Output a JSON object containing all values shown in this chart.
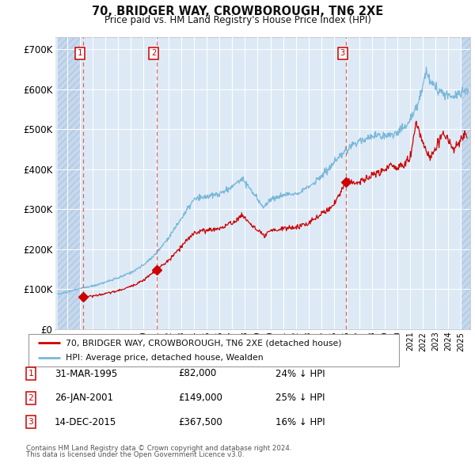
{
  "title": "70, BRIDGER WAY, CROWBOROUGH, TN6 2XE",
  "subtitle": "Price paid vs. HM Land Registry's House Price Index (HPI)",
  "legend_line1": "70, BRIDGER WAY, CROWBOROUGH, TN6 2XE (detached house)",
  "legend_line2": "HPI: Average price, detached house, Wealden",
  "footer1": "Contains HM Land Registry data © Crown copyright and database right 2024.",
  "footer2": "This data is licensed under the Open Government Licence v3.0.",
  "transactions": [
    {
      "num": 1,
      "date": "31-MAR-1995",
      "price": 82000,
      "hpi_note": "24% ↓ HPI",
      "x_year": 1995.25
    },
    {
      "num": 2,
      "date": "26-JAN-2001",
      "price": 149000,
      "hpi_note": "25% ↓ HPI",
      "x_year": 2001.07
    },
    {
      "num": 3,
      "date": "14-DEC-2015",
      "price": 367500,
      "hpi_note": "16% ↓ HPI",
      "x_year": 2015.95
    }
  ],
  "hpi_color": "#7ab8d9",
  "price_color": "#cc0000",
  "marker_color": "#cc0000",
  "dashed_line_color": "#e06060",
  "background_main": "#ddeaf6",
  "background_hatch": "#c5d8ee",
  "grid_color": "#ffffff",
  "ylim": [
    0,
    730000
  ],
  "xlim_start": 1993.25,
  "xlim_end": 2025.75,
  "yticks": [
    0,
    100000,
    200000,
    300000,
    400000,
    500000,
    600000,
    700000
  ],
  "ytick_labels": [
    "£0",
    "£100K",
    "£200K",
    "£300K",
    "£400K",
    "£500K",
    "£600K",
    "£700K"
  ],
  "hatch_left_end": 1995.0,
  "hatch_right_start": 2025.0
}
